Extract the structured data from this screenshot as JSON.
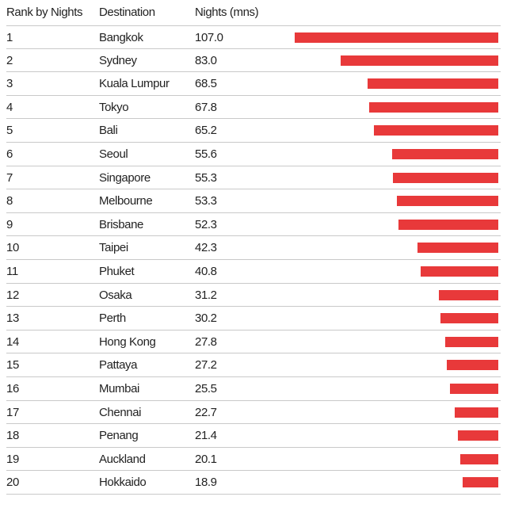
{
  "headers": {
    "rank": "Rank by Nights",
    "destination": "Destination",
    "nights": "Nights (mns)"
  },
  "colors": {
    "bar": "#e8393a"
  },
  "chart_data": {
    "type": "bar",
    "orientation": "horizontal",
    "bar_alignment": "right",
    "title": "",
    "xlabel": "",
    "ylabel": "",
    "xlim": [
      0,
      107.0
    ],
    "grid": false,
    "categories": [
      "Bangkok",
      "Sydney",
      "Kuala Lumpur",
      "Tokyo",
      "Bali",
      "Seoul",
      "Singapore",
      "Melbourne",
      "Brisbane",
      "Taipei",
      "Phuket",
      "Osaka",
      "Perth",
      "Hong Kong",
      "Pattaya",
      "Mumbai",
      "Chennai",
      "Penang",
      "Auckland",
      "Hokkaido"
    ],
    "ranks": [
      "1",
      "2",
      "3",
      "4",
      "5",
      "6",
      "7",
      "8",
      "9",
      "10",
      "11",
      "12",
      "13",
      "14",
      "15",
      "16",
      "17",
      "18",
      "19",
      "20"
    ],
    "values": [
      107.0,
      83.0,
      68.5,
      67.8,
      65.2,
      55.6,
      55.3,
      53.3,
      52.3,
      42.3,
      40.8,
      31.2,
      30.2,
      27.8,
      27.2,
      25.5,
      22.7,
      21.4,
      20.1,
      18.9
    ],
    "value_labels": [
      "107.0",
      "83.0",
      "68.5",
      "67.8",
      "65.2",
      "55.6",
      "55.3",
      "53.3",
      "52.3",
      "42.3",
      "40.8",
      "31.2",
      "30.2",
      "27.8",
      "27.2",
      "25.5",
      "22.7",
      "21.4",
      "20.1",
      "18.9"
    ]
  }
}
